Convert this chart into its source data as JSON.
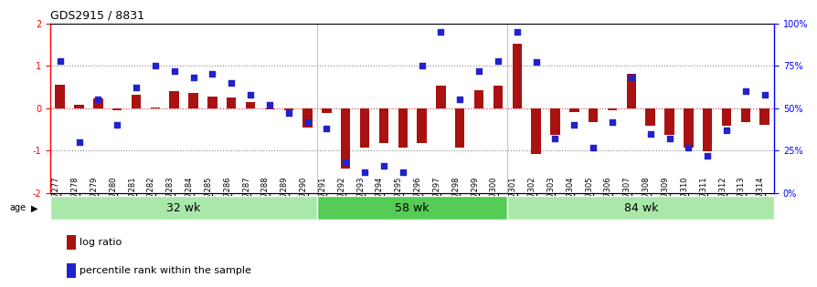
{
  "title": "GDS2915 / 8831",
  "samples": [
    "GSM97277",
    "GSM97278",
    "GSM97279",
    "GSM97280",
    "GSM97281",
    "GSM97282",
    "GSM97283",
    "GSM97284",
    "GSM97285",
    "GSM97286",
    "GSM97287",
    "GSM97288",
    "GSM97289",
    "GSM97290",
    "GSM97291",
    "GSM97292",
    "GSM97293",
    "GSM97294",
    "GSM97295",
    "GSM97296",
    "GSM97297",
    "GSM97298",
    "GSM97299",
    "GSM97300",
    "GSM97301",
    "GSM97302",
    "GSM97303",
    "GSM97304",
    "GSM97305",
    "GSM97306",
    "GSM97307",
    "GSM97308",
    "GSM97309",
    "GSM97310",
    "GSM97311",
    "GSM97312",
    "GSM97313",
    "GSM97314"
  ],
  "log_ratio": [
    0.55,
    0.08,
    0.22,
    -0.05,
    0.32,
    0.02,
    0.4,
    0.35,
    0.28,
    0.25,
    0.15,
    -0.02,
    -0.05,
    -0.45,
    -0.12,
    -1.42,
    -0.92,
    -0.82,
    -0.92,
    -0.82,
    0.52,
    -0.92,
    0.42,
    0.52,
    1.52,
    -1.08,
    -0.62,
    -0.1,
    -0.32,
    -0.05,
    0.82,
    -0.42,
    -0.62,
    -0.92,
    -1.02,
    -0.42,
    -0.32,
    -0.4
  ],
  "percentile_rank": [
    78,
    30,
    55,
    40,
    62,
    75,
    72,
    68,
    70,
    65,
    58,
    52,
    47,
    42,
    38,
    18,
    12,
    16,
    12,
    75,
    95,
    55,
    72,
    78,
    95,
    77,
    32,
    40,
    27,
    42,
    68,
    35,
    32,
    27,
    22,
    37,
    60,
    58
  ],
  "groups": [
    {
      "label": "32 wk",
      "start": 0,
      "end": 14,
      "color": "#aae8aa"
    },
    {
      "label": "58 wk",
      "start": 14,
      "end": 24,
      "color": "#55cc55"
    },
    {
      "label": "84 wk",
      "start": 24,
      "end": 38,
      "color": "#aae8aa"
    }
  ],
  "ylim": [
    -2,
    2
  ],
  "bar_color": "#AA1111",
  "dot_color": "#2222CC",
  "zero_line_color": "#DD3333",
  "dotted_line_color": "#888888",
  "bg_color": "#FFFFFF",
  "plot_bg_color": "#FFFFFF",
  "title_fontsize": 9,
  "tick_fontsize": 6,
  "label_fontsize": 8,
  "group_label_fontsize": 9
}
